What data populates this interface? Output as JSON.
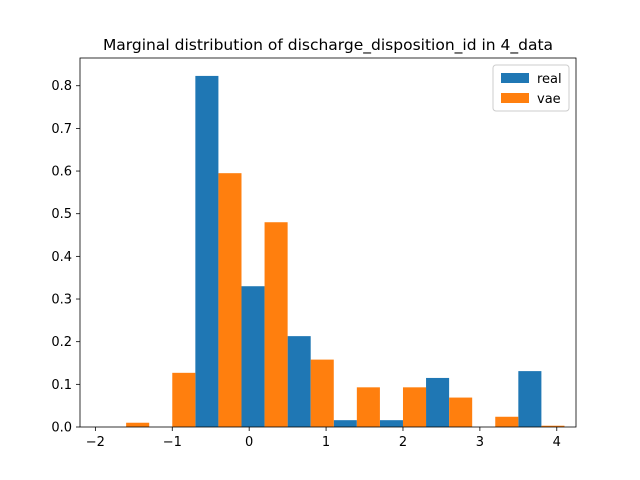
{
  "chart_data": {
    "type": "bar",
    "title": "Marginal distribution of discharge_disposition_id in 4_data",
    "xlabel": "",
    "ylabel": "",
    "xlim": [
      -2.2,
      4.25
    ],
    "ylim": [
      0,
      0.865
    ],
    "xticks": [
      -2,
      -1,
      0,
      1,
      2,
      3,
      4
    ],
    "yticks": [
      0.0,
      0.1,
      0.2,
      0.3,
      0.4,
      0.5,
      0.6,
      0.7,
      0.8
    ],
    "bin_edges": [
      -1.9,
      -1.3,
      -0.7,
      -0.1,
      0.5,
      1.1,
      1.7,
      2.3,
      2.9,
      3.5,
      4.1
    ],
    "series": [
      {
        "name": "real",
        "color": "#1f77b4",
        "values": [
          0.0,
          0.0,
          0.823,
          0.33,
          0.213,
          0.016,
          0.016,
          0.115,
          0.0,
          0.131
        ]
      },
      {
        "name": "vae",
        "color": "#ff7f0e",
        "values": [
          0.01,
          0.127,
          0.595,
          0.48,
          0.158,
          0.093,
          0.093,
          0.069,
          0.024,
          0.003
        ]
      }
    ],
    "legend": {
      "position": "upper-right",
      "entries": [
        "real",
        "vae"
      ]
    },
    "grid": false
  }
}
